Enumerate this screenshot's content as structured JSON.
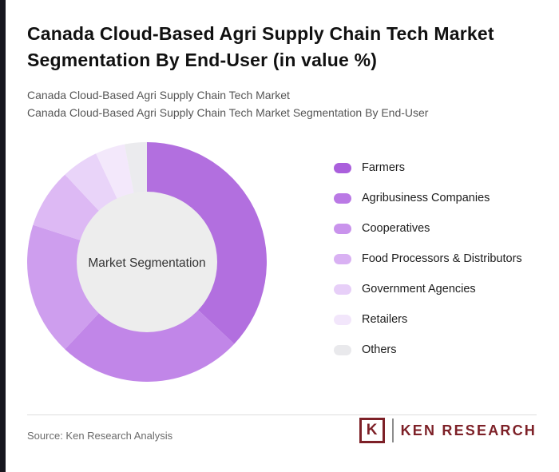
{
  "page": {
    "title": "Canada Cloud-Based Agri Supply Chain Tech Market Segmentation By End-User (in value %)",
    "subtitle_line1": "Canada Cloud-Based Agri Supply Chain Tech Market",
    "subtitle_line2": "Canada Cloud-Based Agri Supply Chain Tech Market Segmentation By End-User"
  },
  "chart_data": {
    "type": "pie",
    "donut": true,
    "center_label": "Market Segmentation",
    "categories": [
      "Farmers",
      "Agribusiness Companies",
      "Cooperatives",
      "Food Processors & Distributors",
      "Government Agencies",
      "Retailers",
      "Others"
    ],
    "values": [
      37,
      25,
      18,
      8,
      5,
      4,
      3
    ],
    "colors": [
      "#aa5fdc",
      "#ba79e5",
      "#c993ec",
      "#d9b1f3",
      "#e7cff8",
      "#f2e6fb",
      "#e9e9ec"
    ],
    "start_angle_deg": 0,
    "direction": "clockwise",
    "legend_position": "right",
    "title": "Canada Cloud-Based Agri Supply Chain Tech Market Segmentation By End-User (in value %)"
  },
  "footer": {
    "source": "Source: Ken Research Analysis",
    "logo_mark": "K",
    "logo_text": "KEN RESEARCH"
  },
  "colors": {
    "accent_strip": "#17171f",
    "inner_circle": "#ededed",
    "logo_maroon": "#7d2027"
  }
}
